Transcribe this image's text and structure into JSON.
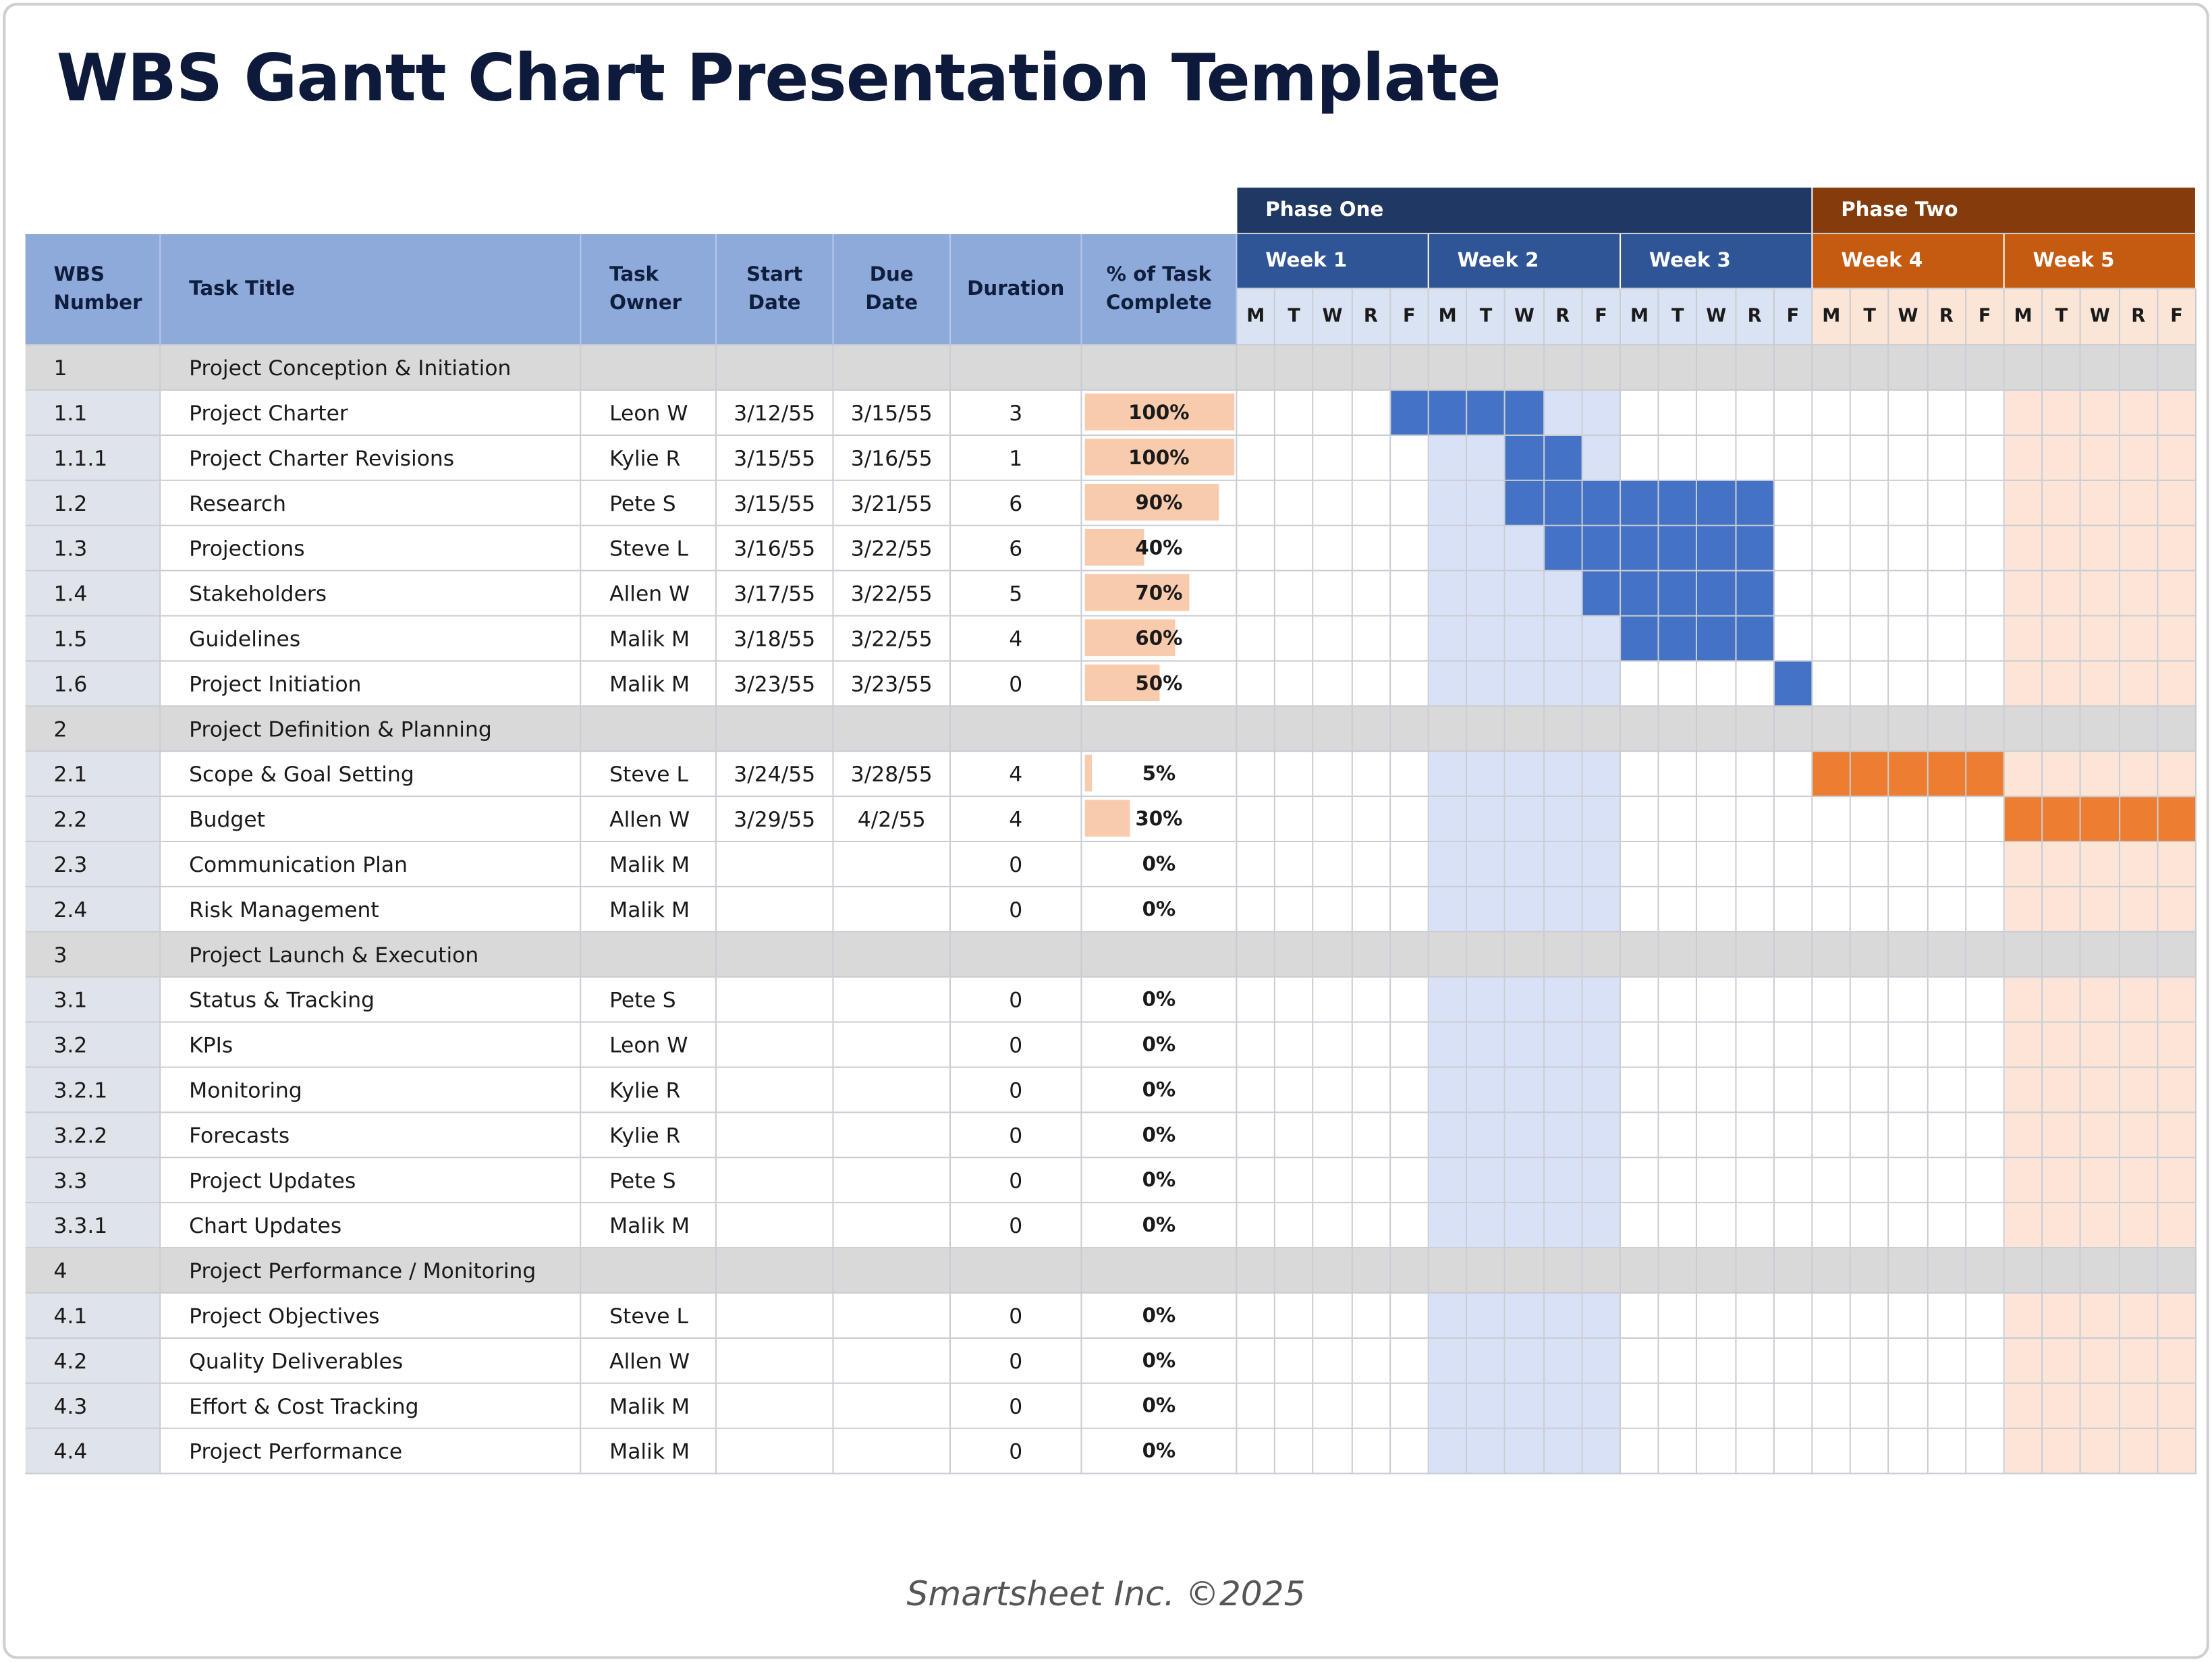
{
  "header": {
    "title": "WBS Gantt Chart Presentation Template"
  },
  "table": {
    "columns": [
      "WBS Number",
      "Task Title",
      "Task Owner",
      "Start Date",
      "Due Date",
      "Duration",
      "% of Task Complete"
    ],
    "phases": [
      {
        "name": "Phase One",
        "weeks": [
          "Week 1",
          "Week 2",
          "Week 3"
        ]
      },
      {
        "name": "Phase Two",
        "weeks": [
          "Week 4",
          "Week 5"
        ]
      }
    ],
    "days": [
      "M",
      "T",
      "W",
      "R",
      "F"
    ],
    "rows": [
      {
        "wbs": "1",
        "title": "Project Conception & Initiation"
      },
      {
        "wbs": "1.1",
        "title": "Project Charter",
        "owner": "Leon W",
        "start": "3/12/55",
        "due": "3/15/55",
        "duration": 3,
        "complete": {
          "value": 100,
          "label": "100%"
        }
      },
      {
        "wbs": "1.1.1",
        "title": "Project Charter Revisions",
        "owner": "Kylie R",
        "start": "3/15/55",
        "due": "3/16/55",
        "duration": 1,
        "complete": {
          "value": 100,
          "label": "100%"
        }
      },
      {
        "wbs": "1.2",
        "title": "Research",
        "owner": "Pete S",
        "start": "3/15/55",
        "due": "3/21/55",
        "duration": 6,
        "complete": {
          "value": 90,
          "label": "90%"
        }
      },
      {
        "wbs": "1.3",
        "title": "Projections",
        "owner": "Steve L",
        "start": "3/16/55",
        "due": "3/22/55",
        "duration": 6,
        "complete": {
          "value": 40,
          "label": "40%"
        }
      },
      {
        "wbs": "1.4",
        "title": "Stakeholders",
        "owner": "Allen W",
        "start": "3/17/55",
        "due": "3/22/55",
        "duration": 5,
        "complete": {
          "value": 70,
          "label": "70%"
        }
      },
      {
        "wbs": "1.5",
        "title": "Guidelines",
        "owner": "Malik M",
        "start": "3/18/55",
        "due": "3/22/55",
        "duration": 4,
        "complete": {
          "value": 60,
          "label": "60%"
        }
      },
      {
        "wbs": "1.6",
        "title": "Project Initiation",
        "owner": "Malik M",
        "start": "3/23/55",
        "due": "3/23/55",
        "duration": 0,
        "complete": {
          "value": 50,
          "label": "50%"
        }
      },
      {
        "wbs": "2",
        "title": "Project Definition & Planning"
      },
      {
        "wbs": "2.1",
        "title": "Scope & Goal Setting",
        "owner": "Steve L",
        "start": "3/24/55",
        "due": "3/28/55",
        "duration": 4,
        "complete": {
          "value": 5,
          "label": "5%"
        }
      },
      {
        "wbs": "2.2",
        "title": "Budget",
        "owner": "Allen W",
        "start": "3/29/55",
        "due": "4/2/55",
        "duration": 4,
        "complete": {
          "value": 30,
          "label": "30%"
        }
      },
      {
        "wbs": "2.3",
        "title": "Communication Plan",
        "owner": "Malik M",
        "duration": 0,
        "complete": {
          "value": 0,
          "label": "0%"
        }
      },
      {
        "wbs": "2.4",
        "title": "Risk Management",
        "owner": "Malik M",
        "duration": 0,
        "complete": {
          "value": 0,
          "label": "0%"
        }
      },
      {
        "wbs": "3",
        "title": "Project Launch & Execution"
      },
      {
        "wbs": "3.1",
        "title": "Status & Tracking",
        "owner": "Pete S",
        "duration": 0,
        "complete": {
          "value": 0,
          "label": "0%"
        }
      },
      {
        "wbs": "3.2",
        "title": "KPIs",
        "owner": "Leon W",
        "duration": 0,
        "complete": {
          "value": 0,
          "label": "0%"
        }
      },
      {
        "wbs": "3.2.1",
        "title": "Monitoring",
        "owner": "Kylie R",
        "duration": 0,
        "complete": {
          "value": 0,
          "label": "0%"
        }
      },
      {
        "wbs": "3.2.2",
        "title": "Forecasts",
        "owner": "Kylie R",
        "duration": 0,
        "complete": {
          "value": 0,
          "label": "0%"
        }
      },
      {
        "wbs": "3.3",
        "title": "Project Updates",
        "owner": "Pete S",
        "duration": 0,
        "complete": {
          "value": 0,
          "label": "0%"
        }
      },
      {
        "wbs": "3.3.1",
        "title": "Chart Updates",
        "owner": "Malik M",
        "duration": 0,
        "complete": {
          "value": 0,
          "label": "0%"
        }
      },
      {
        "wbs": "4",
        "title": "Project Performance / Monitoring"
      },
      {
        "wbs": "4.1",
        "title": "Project Objectives",
        "owner": "Steve L",
        "duration": 0,
        "complete": {
          "value": 0,
          "label": "0%"
        }
      },
      {
        "wbs": "4.2",
        "title": "Quality Deliverables",
        "owner": "Allen W",
        "duration": 0,
        "complete": {
          "value": 0,
          "label": "0%"
        }
      },
      {
        "wbs": "4.3",
        "title": "Effort & Cost Tracking",
        "owner": "Malik M",
        "duration": 0,
        "complete": {
          "value": 0,
          "label": "0%"
        }
      },
      {
        "wbs": "4.4",
        "title": "Project Performance",
        "owner": "Malik M",
        "duration": 0,
        "complete": {
          "value": 0,
          "label": "0%"
        }
      }
    ]
  },
  "footer": "Smartsheet Inc. ©2025"
}
